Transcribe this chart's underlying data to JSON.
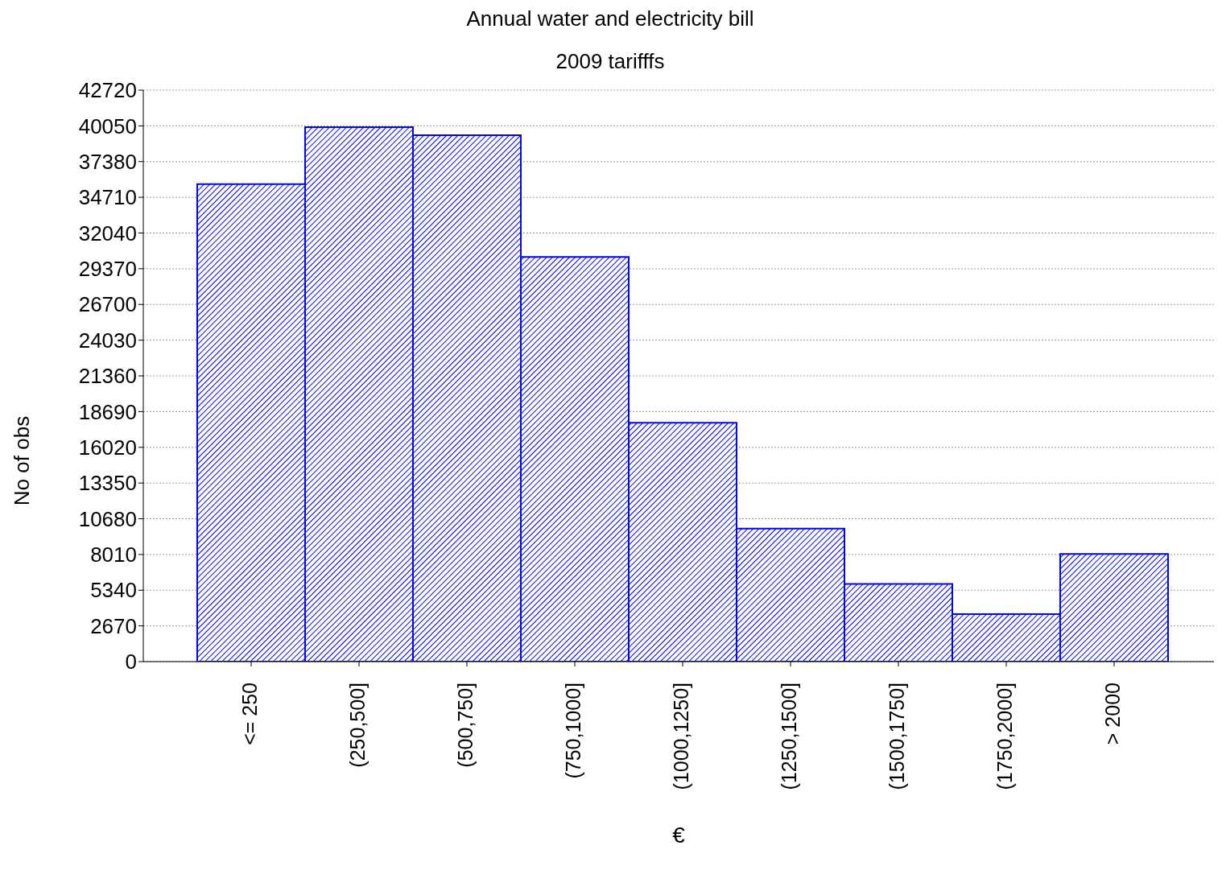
{
  "chart_data": {
    "type": "bar",
    "title": "Annual water and electricity bill",
    "subtitle": "2009 tarifffs",
    "xlabel": "€",
    "ylabel": "No of obs",
    "categories": [
      "<= 250",
      "(250,500]",
      "(500,750]",
      "(750,1000]",
      "(1000,1250]",
      "(1250,1500]",
      "(1500,1750]",
      "(1750,2000]",
      "> 2000"
    ],
    "values": [
      35700,
      39950,
      39350,
      30250,
      17850,
      9950,
      5800,
      3550,
      8050
    ],
    "color": "#0000ff",
    "ylim": [
      0,
      42720
    ],
    "yticks": [
      0,
      2670,
      5340,
      8010,
      10680,
      13350,
      16020,
      18690,
      21360,
      24030,
      26700,
      29370,
      32040,
      34710,
      37380,
      40050,
      42720
    ],
    "grid": "y"
  }
}
